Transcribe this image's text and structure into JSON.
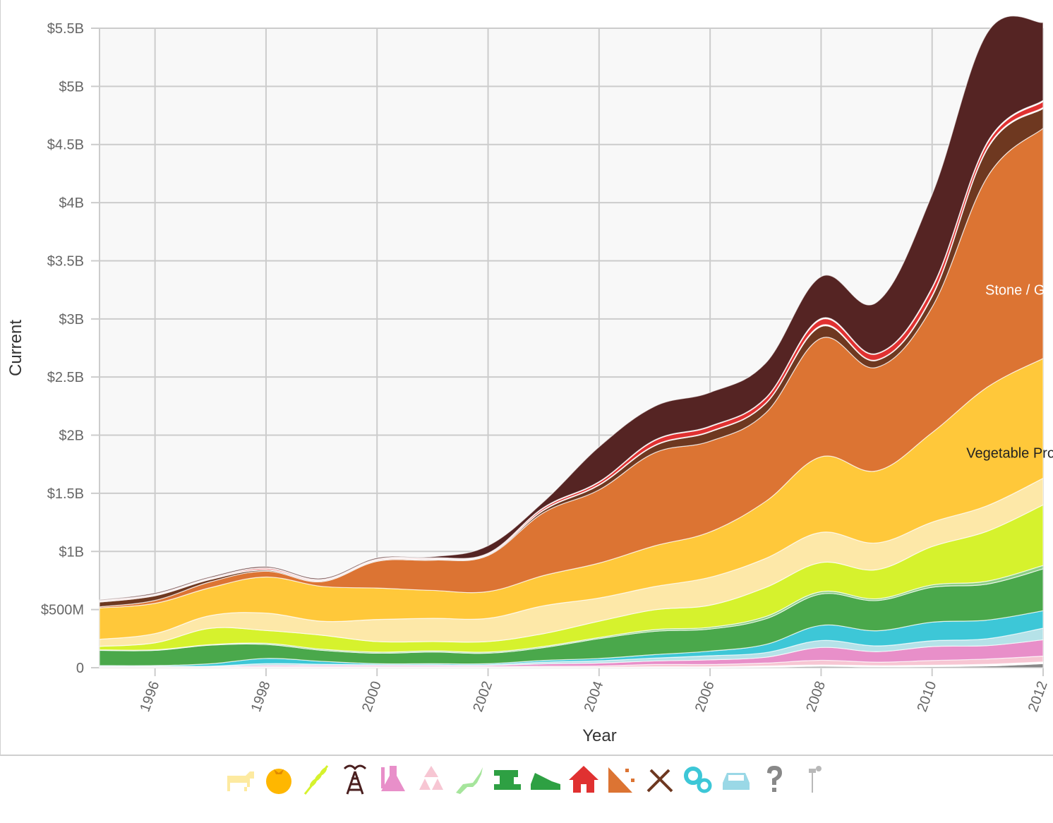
{
  "chart_data": {
    "type": "area",
    "stacked": true,
    "xlabel": "Year",
    "ylabel": "Current",
    "xlim": [
      1995,
      2012
    ],
    "ylim": [
      0,
      5500000000
    ],
    "x_ticks": [
      "1996",
      "1998",
      "2000",
      "2002",
      "2004",
      "2006",
      "2008",
      "2010",
      "2012"
    ],
    "y_ticks": [
      "0",
      "$500M",
      "$1B",
      "$1.5B",
      "$2B",
      "$2.5B",
      "$3B",
      "$3.5B",
      "$4B",
      "$4.5B",
      "$5B",
      "$5.5B"
    ],
    "grid": true,
    "x": [
      1995,
      1996,
      1997,
      1998,
      1999,
      2000,
      2001,
      2002,
      2003,
      2004,
      2005,
      2006,
      2007,
      2008,
      2009,
      2010,
      2011,
      2012
    ],
    "series": [
      {
        "color": "#888888",
        "values": [
          0,
          0,
          0,
          0,
          0,
          0,
          0,
          0,
          0,
          0,
          0,
          0,
          5,
          12,
          8,
          10,
          15,
          35
        ]
      },
      {
        "color": "#ffffff",
        "values": [
          2,
          2,
          2,
          5,
          5,
          5,
          5,
          5,
          5,
          5,
          8,
          8,
          10,
          12,
          10,
          12,
          15,
          15
        ]
      },
      {
        "color": "#f7c6d3",
        "values": [
          2,
          2,
          2,
          5,
          5,
          5,
          5,
          5,
          8,
          10,
          20,
          20,
          25,
          40,
          30,
          40,
          45,
          50
        ]
      },
      {
        "color": "#e88fc9",
        "values": [
          5,
          5,
          5,
          10,
          10,
          10,
          10,
          10,
          20,
          25,
          30,
          40,
          50,
          110,
          90,
          120,
          115,
          140
        ]
      },
      {
        "color": "#b5e2e8",
        "values": [
          5,
          5,
          5,
          15,
          10,
          5,
          5,
          5,
          15,
          20,
          25,
          35,
          40,
          60,
          50,
          50,
          60,
          100
        ]
      },
      {
        "color": "#3dc7d7",
        "values": [
          5,
          5,
          20,
          45,
          25,
          10,
          10,
          10,
          15,
          20,
          30,
          40,
          70,
          130,
          130,
          160,
          160,
          150
        ]
      },
      {
        "color": "#4aa84b",
        "values": [
          130,
          130,
          160,
          120,
          95,
          90,
          100,
          90,
          110,
          170,
          200,
          190,
          220,
          270,
          260,
          300,
          310,
          360
        ]
      },
      {
        "color": "#8ccf85",
        "values": [
          5,
          5,
          5,
          10,
          10,
          10,
          10,
          10,
          10,
          10,
          15,
          15,
          20,
          20,
          15,
          20,
          25,
          30
        ]
      },
      {
        "color": "#d6f22d",
        "values": [
          30,
          60,
          140,
          110,
          120,
          90,
          80,
          90,
          110,
          140,
          170,
          190,
          250,
          250,
          250,
          330,
          430,
          520
        ]
      },
      {
        "color": "#fde8a8",
        "values": [
          60,
          80,
          110,
          150,
          120,
          190,
          200,
          200,
          240,
          200,
          200,
          240,
          250,
          260,
          230,
          210,
          220,
          230
        ]
      },
      {
        "color": "#ffc83a",
        "values": [
          270,
          260,
          240,
          310,
          300,
          270,
          240,
          230,
          260,
          300,
          350,
          390,
          490,
          650,
          620,
          770,
          1020,
          1030
        ]
      },
      {
        "color": "#dc7433",
        "values": [
          10,
          25,
          50,
          50,
          40,
          230,
          260,
          310,
          540,
          630,
          800,
          780,
          760,
          1020,
          890,
          1080,
          1810,
          1980
        ]
      },
      {
        "color": "#6e3820",
        "values": [
          40,
          40,
          20,
          10,
          5,
          5,
          5,
          5,
          20,
          40,
          60,
          80,
          80,
          100,
          60,
          90,
          240,
          170
        ]
      },
      {
        "color": "#ffffff",
        "values": [
          5,
          5,
          5,
          5,
          5,
          5,
          5,
          5,
          5,
          5,
          5,
          5,
          5,
          10,
          5,
          10,
          10,
          10
        ]
      },
      {
        "color": "#e03131",
        "values": [
          5,
          5,
          5,
          10,
          5,
          5,
          5,
          5,
          15,
          20,
          40,
          40,
          40,
          50,
          50,
          60,
          40,
          50
        ]
      },
      {
        "color": "#ffffff",
        "values": [
          5,
          5,
          5,
          5,
          5,
          5,
          5,
          5,
          5,
          5,
          5,
          5,
          5,
          10,
          5,
          10,
          10,
          10
        ]
      },
      {
        "color": "#552423",
        "values": [
          5,
          10,
          10,
          10,
          10,
          10,
          10,
          65,
          50,
          300,
          290,
          290,
          300,
          360,
          440,
          800,
          940,
          670
        ]
      }
    ],
    "units": "millions",
    "annotations": [
      {
        "text": "Stone / Glass",
        "color": "#ffffff",
        "x": 2010.5,
        "y": 3250
      },
      {
        "text": "Vegetable Products",
        "color": "#222222",
        "x": 2010.5,
        "y": 1850
      }
    ]
  },
  "legend_icons": [
    {
      "name": "cow-icon",
      "color": "#fdeaa0"
    },
    {
      "name": "tomato-icon",
      "color": "#ffb700"
    },
    {
      "name": "wheat-icon",
      "color": "#d6f22d"
    },
    {
      "name": "oil-derrick-icon",
      "color": "#4a1f1f"
    },
    {
      "name": "flask-icon",
      "color": "#e88fc9"
    },
    {
      "name": "recycle-icon",
      "color": "#f7c6d3"
    },
    {
      "name": "deer-icon",
      "color": "#a6e59c"
    },
    {
      "name": "sewing-machine-icon",
      "color": "#2ea043"
    },
    {
      "name": "sneaker-icon",
      "color": "#2ea043"
    },
    {
      "name": "house-icon",
      "color": "#e03131"
    },
    {
      "name": "stone-icon",
      "color": "#dc7433"
    },
    {
      "name": "pickaxe-icon",
      "color": "#6e3820"
    },
    {
      "name": "gears-icon",
      "color": "#3dc7d7"
    },
    {
      "name": "car-icon",
      "color": "#9ad8e6"
    },
    {
      "name": "question-icon",
      "color": "#888888"
    },
    {
      "name": "art-icon",
      "color": "#b8b8b8"
    }
  ]
}
